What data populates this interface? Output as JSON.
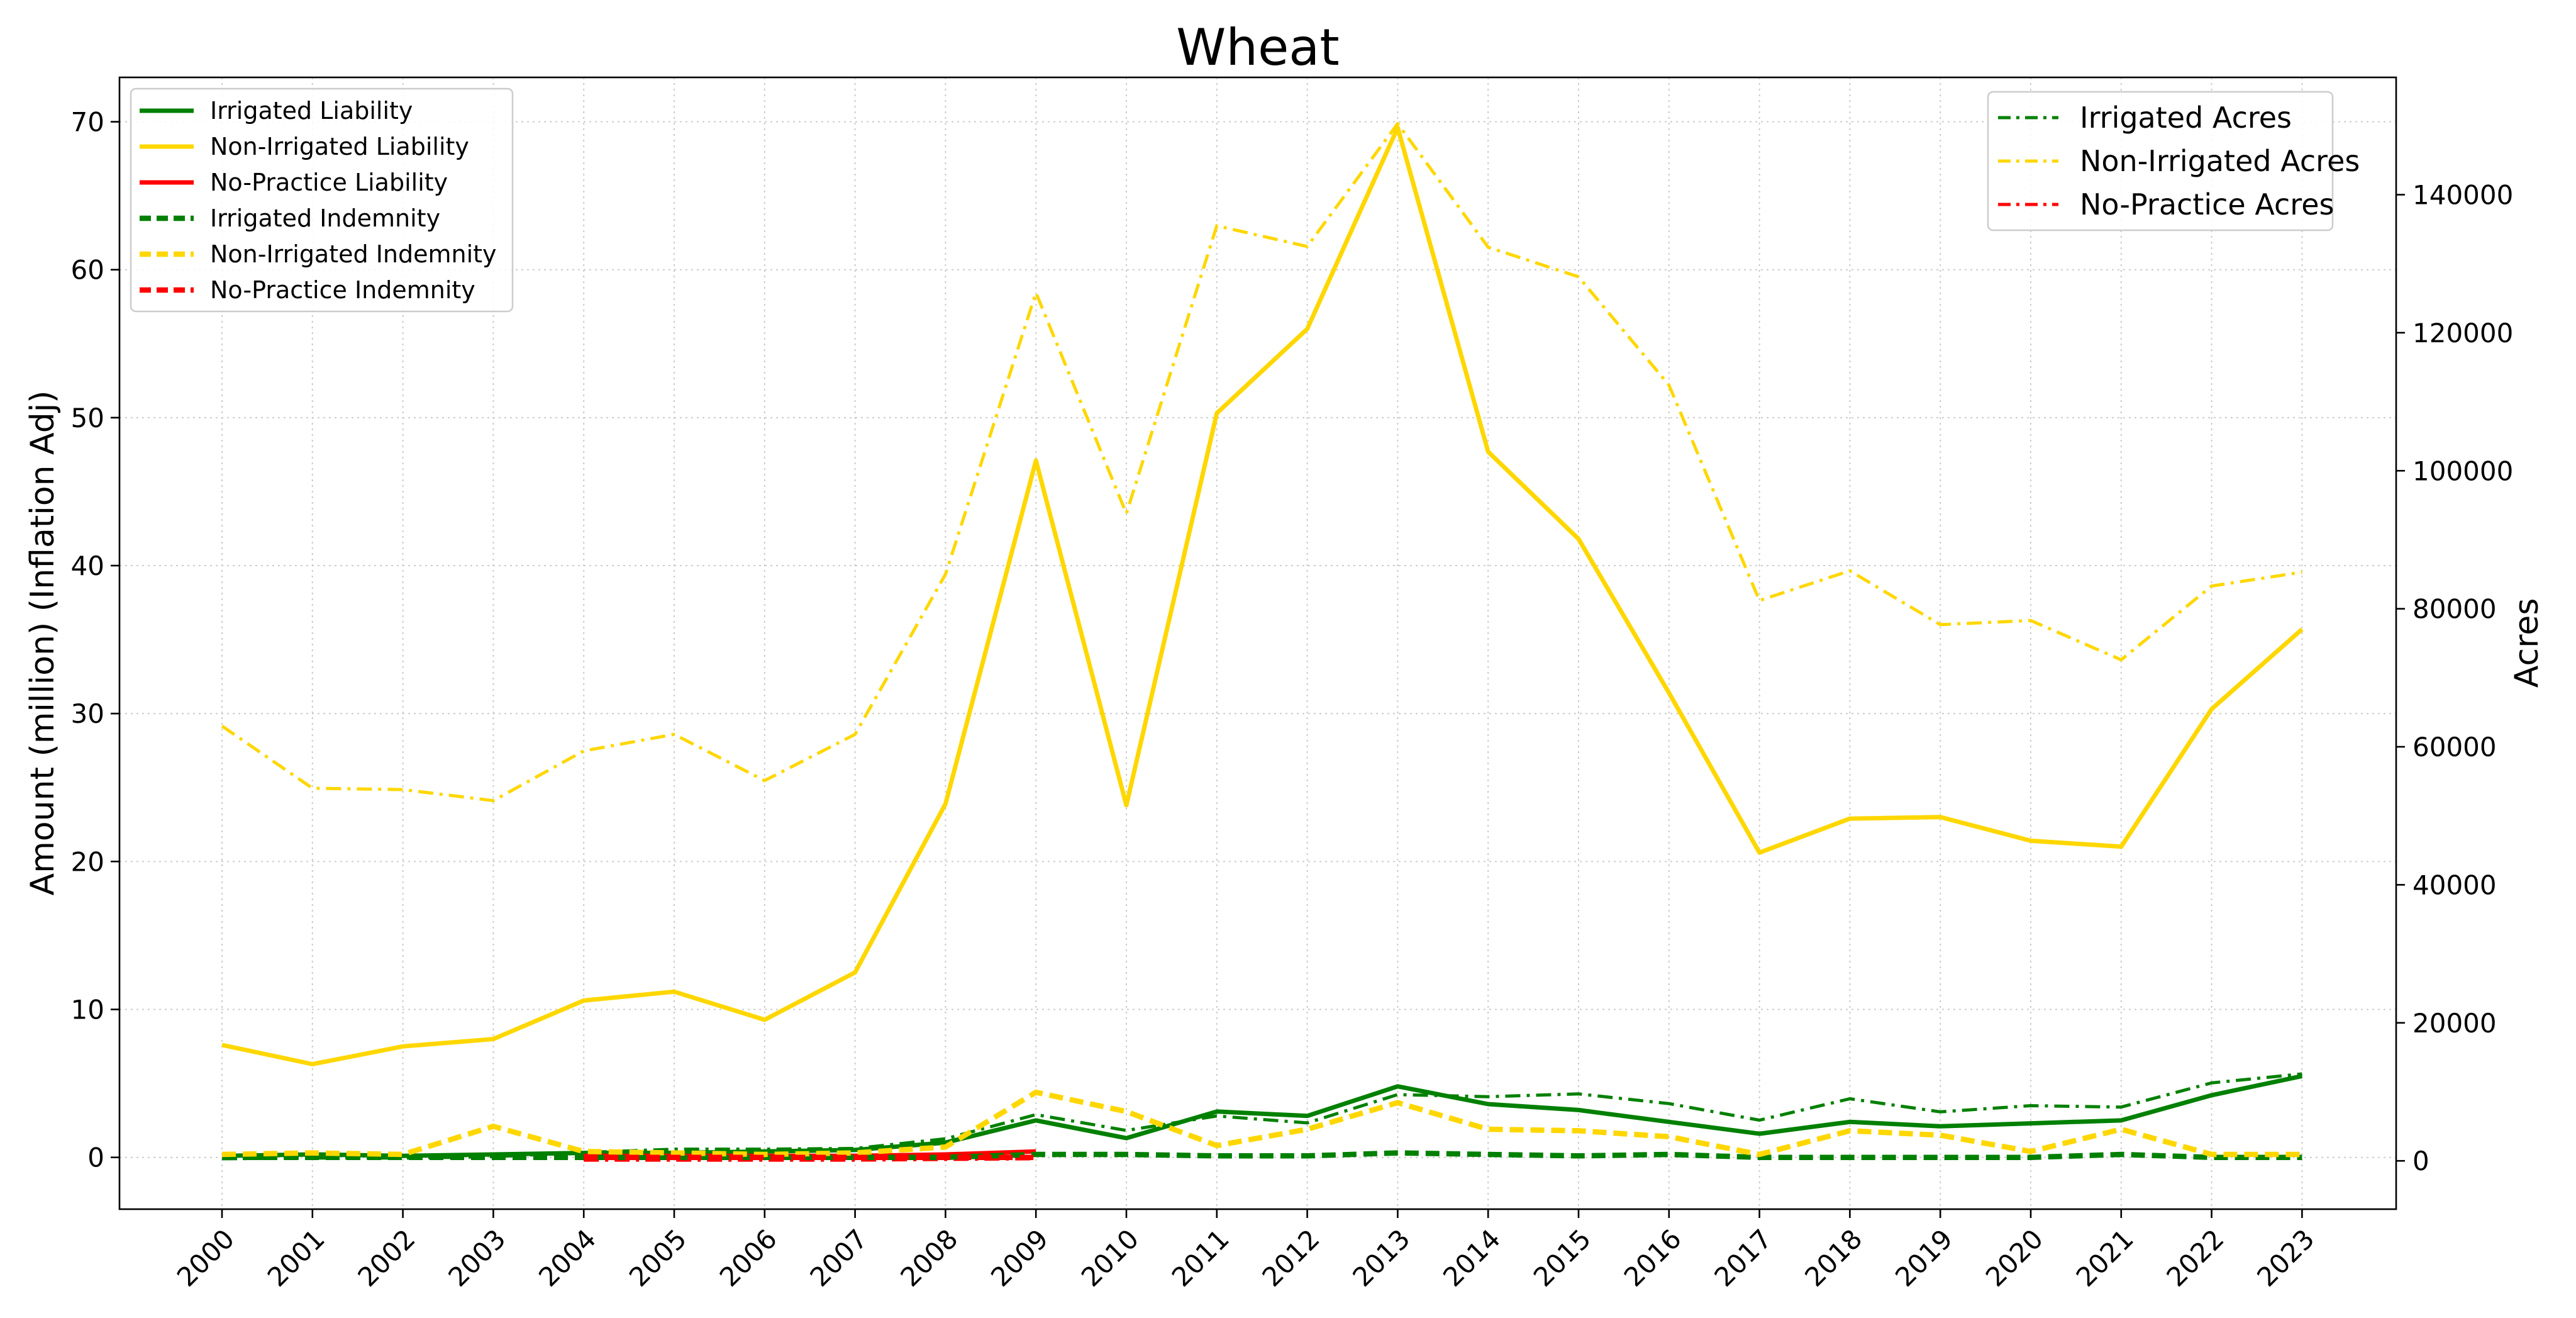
{
  "chart_data": {
    "type": "line",
    "title": "Wheat",
    "ylabel": "Amount (million) (Inflation Adj)",
    "y2label": "Acres",
    "xlabel": "",
    "grid": true,
    "categories": [
      "2000",
      "2001",
      "2002",
      "2003",
      "2004",
      "2005",
      "2006",
      "2007",
      "2008",
      "2009",
      "2010",
      "2011",
      "2012",
      "2013",
      "2014",
      "2015",
      "2016",
      "2017",
      "2018",
      "2019",
      "2020",
      "2021",
      "2022",
      "2023"
    ],
    "ylim": [
      -3.5,
      73
    ],
    "yticks": [
      0,
      10,
      20,
      30,
      40,
      50,
      60,
      70
    ],
    "y2lim": [
      -7000,
      157000
    ],
    "y2ticks": [
      0,
      20000,
      40000,
      60000,
      80000,
      100000,
      120000,
      140000
    ],
    "colors": {
      "irrigated": "#008000",
      "non_irrigated": "#FFD700",
      "no_practice": "#FF0000"
    },
    "series_left": [
      {
        "name": "Irrigated Liability",
        "color": "#008000",
        "style": "solid",
        "axis": "left",
        "values": [
          0.1,
          0.2,
          0.1,
          0.2,
          0.3,
          0.3,
          0.4,
          0.5,
          1.0,
          2.5,
          1.3,
          3.1,
          2.8,
          4.8,
          3.6,
          3.2,
          2.4,
          1.6,
          2.4,
          2.1,
          2.3,
          2.5,
          4.2,
          5.5
        ]
      },
      {
        "name": "Non-Irrigated Liability",
        "color": "#FFD700",
        "style": "solid",
        "axis": "left",
        "values": [
          7.6,
          6.3,
          7.5,
          8.0,
          10.6,
          11.2,
          9.3,
          12.5,
          23.9,
          47.1,
          23.8,
          50.3,
          56.0,
          69.6,
          47.7,
          41.8,
          31.4,
          20.6,
          22.9,
          23.0,
          21.4,
          21.0,
          30.3,
          35.7
        ]
      },
      {
        "name": "No-Practice Liability",
        "color": "#FF0000",
        "style": "solid",
        "axis": "left",
        "values": [
          null,
          null,
          null,
          null,
          0.1,
          0.1,
          0.1,
          0.1,
          0.2,
          0.4,
          null,
          null,
          null,
          null,
          null,
          null,
          null,
          null,
          null,
          null,
          null,
          null,
          null,
          null
        ]
      },
      {
        "name": "Irrigated Indemnity",
        "color": "#008000",
        "style": "dashed",
        "axis": "left",
        "values": [
          0.0,
          0.0,
          0.0,
          0.0,
          0.0,
          0.0,
          0.0,
          0.0,
          0.0,
          0.2,
          0.2,
          0.1,
          0.1,
          0.3,
          0.2,
          0.1,
          0.2,
          0.0,
          0.0,
          0.0,
          0.0,
          0.2,
          0.0,
          0.0
        ]
      },
      {
        "name": "Non-Irrigated Indemnity",
        "color": "#FFD700",
        "style": "dashed",
        "axis": "left",
        "values": [
          0.2,
          0.3,
          0.2,
          2.1,
          0.4,
          0.3,
          0.2,
          0.3,
          0.7,
          4.4,
          3.1,
          0.8,
          1.9,
          3.7,
          1.9,
          1.8,
          1.4,
          0.2,
          1.8,
          1.5,
          0.4,
          1.9,
          0.2,
          0.2
        ]
      },
      {
        "name": "No-Practice Indemnity",
        "color": "#FF0000",
        "style": "dashed",
        "axis": "left",
        "values": [
          null,
          null,
          null,
          null,
          0.0,
          0.0,
          0.0,
          0.0,
          0.0,
          0.0,
          null,
          null,
          null,
          null,
          null,
          null,
          null,
          null,
          null,
          null,
          null,
          null,
          null,
          null
        ]
      }
    ],
    "series_right": [
      {
        "name": "Irrigated Acres",
        "color": "#008000",
        "style": "dashdot",
        "axis": "right",
        "values": [
          300,
          400,
          400,
          600,
          1200,
          1700,
          1700,
          1800,
          3200,
          6700,
          4400,
          6500,
          5500,
          9600,
          9300,
          9700,
          8300,
          5900,
          9000,
          7100,
          8000,
          7800,
          11300,
          12600
        ]
      },
      {
        "name": "Non-Irrigated Acres",
        "color": "#FFD700",
        "style": "dashdot",
        "axis": "right",
        "values": [
          63000,
          54000,
          53800,
          52200,
          59400,
          61800,
          55100,
          61800,
          85000,
          125800,
          93800,
          135500,
          132500,
          150300,
          132400,
          128100,
          112400,
          81200,
          85500,
          77700,
          78300,
          72600,
          83300,
          85300
        ]
      },
      {
        "name": "No-Practice Acres",
        "color": "#FF0000",
        "style": "dashdot",
        "axis": "right",
        "values": [
          null,
          null,
          null,
          null,
          100,
          100,
          100,
          100,
          200,
          300,
          null,
          null,
          null,
          null,
          null,
          null,
          null,
          null,
          null,
          null,
          null,
          null,
          null,
          null
        ]
      }
    ],
    "legend_left_placement": "upper-left",
    "legend_right_placement": "upper-right"
  }
}
